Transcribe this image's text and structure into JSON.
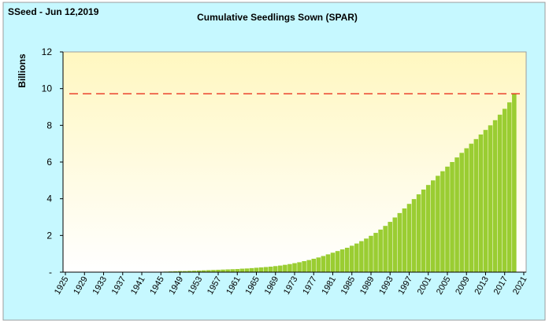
{
  "header_label": "SSeed - Jun 12,2019",
  "colors": {
    "outer_bg": "#c6f8ff",
    "plot_top": "#fff7c0",
    "plot_bottom": "#ffffff",
    "bar": "#9acd32",
    "reference_line": "#e8321e",
    "axis": "#000000"
  },
  "chart_data": {
    "type": "bar",
    "title": "Cumulative Seedlings Sown (SPAR)",
    "xlabel": "",
    "ylabel": "Billions",
    "ylim": [
      0,
      12
    ],
    "y_ticks": [
      0,
      2,
      4,
      6,
      8,
      10,
      12
    ],
    "y_tick_labels": [
      "-",
      "2",
      "4",
      "6",
      "8",
      "10",
      "12"
    ],
    "x_tick_labels": [
      "1925",
      "1929",
      "1933",
      "1937",
      "1941",
      "1945",
      "1949",
      "1953",
      "1957",
      "1961",
      "1965",
      "1969",
      "1973",
      "1977",
      "1981",
      "1985",
      "1989",
      "1993",
      "1997",
      "2001",
      "2005",
      "2009",
      "2013",
      "2017",
      "2021"
    ],
    "reference_line": {
      "value": 9.72,
      "style": "dashed"
    },
    "categories": [
      1925,
      1926,
      1927,
      1928,
      1929,
      1930,
      1931,
      1932,
      1933,
      1934,
      1935,
      1936,
      1937,
      1938,
      1939,
      1940,
      1941,
      1942,
      1943,
      1944,
      1945,
      1946,
      1947,
      1948,
      1949,
      1950,
      1951,
      1952,
      1953,
      1954,
      1955,
      1956,
      1957,
      1958,
      1959,
      1960,
      1961,
      1962,
      1963,
      1964,
      1965,
      1966,
      1967,
      1968,
      1969,
      1970,
      1971,
      1972,
      1973,
      1974,
      1975,
      1976,
      1977,
      1978,
      1979,
      1980,
      1981,
      1982,
      1983,
      1984,
      1985,
      1986,
      1987,
      1988,
      1989,
      1990,
      1991,
      1992,
      1993,
      1994,
      1995,
      1996,
      1997,
      1998,
      1999,
      2000,
      2001,
      2002,
      2003,
      2004,
      2005,
      2006,
      2007,
      2008,
      2009,
      2010,
      2011,
      2012,
      2013,
      2014,
      2015,
      2016,
      2017,
      2018,
      2019
    ],
    "series": [
      {
        "name": "Cumulative Seedlings Sown",
        "values": [
          0.0,
          0.0,
          0.0,
          0.0,
          0.0,
          0.0,
          0.0,
          0.0,
          0.0,
          0.0,
          0.0,
          0.0,
          0.01,
          0.01,
          0.01,
          0.01,
          0.01,
          0.01,
          0.02,
          0.02,
          0.02,
          0.03,
          0.04,
          0.05,
          0.06,
          0.06,
          0.07,
          0.08,
          0.09,
          0.1,
          0.11,
          0.12,
          0.13,
          0.14,
          0.15,
          0.16,
          0.17,
          0.19,
          0.2,
          0.22,
          0.24,
          0.26,
          0.28,
          0.3,
          0.33,
          0.36,
          0.4,
          0.44,
          0.49,
          0.54,
          0.6,
          0.66,
          0.73,
          0.8,
          0.88,
          0.97,
          1.06,
          1.15,
          1.24,
          1.33,
          1.44,
          1.56,
          1.69,
          1.83,
          1.98,
          2.14,
          2.32,
          2.52,
          2.74,
          2.98,
          3.22,
          3.47,
          3.72,
          3.98,
          4.24,
          4.5,
          4.75,
          5.0,
          5.25,
          5.5,
          5.75,
          6.0,
          6.25,
          6.5,
          6.75,
          7.0,
          7.25,
          7.5,
          7.75,
          8.0,
          8.28,
          8.58,
          8.9,
          9.25,
          9.72
        ]
      }
    ]
  }
}
